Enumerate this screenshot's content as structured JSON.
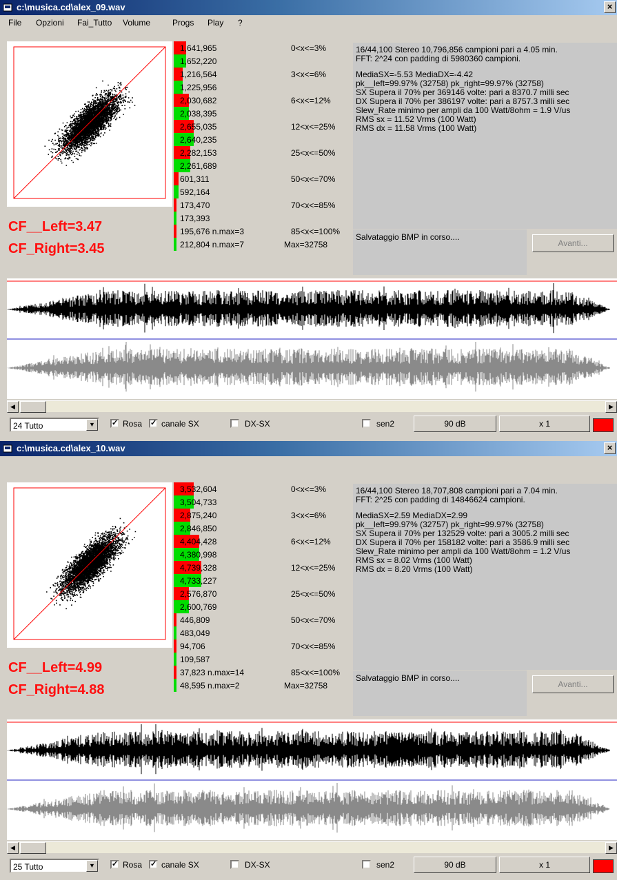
{
  "colors": {
    "red": "#ff0000",
    "green": "#00dd00",
    "title_start": "#0a246a",
    "title_end": "#a6caf0",
    "cf_text": "#ff1010"
  },
  "menu": [
    "File",
    "Opzioni",
    "Fai_Tutto",
    "Volume",
    "Progs",
    "Play",
    "?"
  ],
  "windows": [
    {
      "title": "c:\\musica.cd\\alex_09.wav",
      "close_glyph": "×",
      "cf_left": "CF__Left=3.47",
      "cf_right": "CF_Right=3.45",
      "bars": [
        {
          "value": "1,641,965",
          "range": "0<x<=3%",
          "channel": "left",
          "fill": 0.08
        },
        {
          "value": "1,652,220",
          "range": "",
          "channel": "right",
          "fill": 0.08
        },
        {
          "value": "1,216,564",
          "range": "3<x<=6%",
          "channel": "left",
          "fill": 0.06
        },
        {
          "value": "1,225,956",
          "range": "",
          "channel": "right",
          "fill": 0.06
        },
        {
          "value": "2,030,682",
          "range": "6<x<=12%",
          "channel": "left",
          "fill": 0.1
        },
        {
          "value": "2,038,395",
          "range": "",
          "channel": "right",
          "fill": 0.1
        },
        {
          "value": "2,655,035",
          "range": "12<x<=25%",
          "channel": "left",
          "fill": 0.13
        },
        {
          "value": "2,640,235",
          "range": "",
          "channel": "right",
          "fill": 0.13
        },
        {
          "value": "2,282,153",
          "range": "25<x<=50%",
          "channel": "left",
          "fill": 0.11
        },
        {
          "value": "2,261,689",
          "range": "",
          "channel": "right",
          "fill": 0.11
        },
        {
          "value": "601,311",
          "range": "50<x<=70%",
          "channel": "left",
          "fill": 0.03
        },
        {
          "value": "592,164",
          "range": "",
          "channel": "right",
          "fill": 0.03
        },
        {
          "value": "173,470",
          "range": "70<x<=85%",
          "channel": "left",
          "fill": 0.01
        },
        {
          "value": "173,393",
          "range": "",
          "channel": "right",
          "fill": 0.01
        },
        {
          "value": "195,676 n.max=3",
          "range": "85<x<=100%",
          "channel": "left",
          "fill": 0.01
        },
        {
          "value": "212,804 n.max=7",
          "range": "Max=32758",
          "channel": "right",
          "fill": 0.01
        }
      ],
      "info": [
        "16/44,100 Stereo 10,796,856 campioni pari a 4.05 min.",
        "FFT: 2^24 con padding di 5980360 campioni.",
        "MediaSX=-5.53  MediaDX=-4.42",
        "pk__left=99.97% (32758)  pk_right=99.97% (32758)",
        "SX Supera il 70% per 369146 volte: pari a 8370.7 milli sec",
        "DX Supera il 70% per 386197 volte: pari a 8757.3 milli sec",
        "Slew_Rate minimo per ampli da 100 Watt/8ohm = 1.9 V/us",
        "RMS sx = 11.52 Vrms (100 Watt)",
        "RMS dx = 11.58 Vrms (100 Watt)"
      ],
      "status": "Salvataggio BMP in corso....",
      "avanti": "Avanti...",
      "combo": "24 Tutto",
      "rosa": "Rosa",
      "canale": "canale SX",
      "dxsx": "DX-SX",
      "sen2": "sen2",
      "db_button": "90 dB",
      "x_button": "x 1",
      "check_mark": "✓",
      "left_arrow": "◀",
      "right_arrow": "▶",
      "combo_arrow": "▼"
    },
    {
      "title": "c:\\musica.cd\\alex_10.wav",
      "close_glyph": "×",
      "cf_left": "CF__Left=4.99",
      "cf_right": "CF_Right=4.88",
      "bars": [
        {
          "value": "3,532,604",
          "range": "0<x<=3%",
          "channel": "left",
          "fill": 0.13
        },
        {
          "value": "3,504,733",
          "range": "",
          "channel": "right",
          "fill": 0.13
        },
        {
          "value": "2,875,240",
          "range": "3<x<=6%",
          "channel": "left",
          "fill": 0.11
        },
        {
          "value": "2,846,850",
          "range": "",
          "channel": "right",
          "fill": 0.11
        },
        {
          "value": "4,404,428",
          "range": "6<x<=12%",
          "channel": "left",
          "fill": 0.17
        },
        {
          "value": "4,380,998",
          "range": "",
          "channel": "right",
          "fill": 0.17
        },
        {
          "value": "4,739,328",
          "range": "12<x<=25%",
          "channel": "left",
          "fill": 0.18
        },
        {
          "value": "4,733,227",
          "range": "",
          "channel": "right",
          "fill": 0.18
        },
        {
          "value": "2,576,870",
          "range": "25<x<=50%",
          "channel": "left",
          "fill": 0.1
        },
        {
          "value": "2,600,769",
          "range": "",
          "channel": "right",
          "fill": 0.1
        },
        {
          "value": "446,809",
          "range": "50<x<=70%",
          "channel": "left",
          "fill": 0.02
        },
        {
          "value": "483,049",
          "range": "",
          "channel": "right",
          "fill": 0.02
        },
        {
          "value": "94,706",
          "range": "70<x<=85%",
          "channel": "left",
          "fill": 0.005
        },
        {
          "value": "109,587",
          "range": "",
          "channel": "right",
          "fill": 0.005
        },
        {
          "value": "37,823 n.max=14",
          "range": "85<x<=100%",
          "channel": "left",
          "fill": 0.003
        },
        {
          "value": "48,595 n.max=2",
          "range": "Max=32758",
          "channel": "right",
          "fill": 0.003
        }
      ],
      "info": [
        "16/44,100 Stereo 18,707,808 campioni pari a 7.04 min.",
        "FFT: 2^25 con padding di 14846624 campioni.",
        "MediaSX=2.59  MediaDX=2.99",
        "pk__left=99.97% (32757)  pk_right=99.97% (32758)",
        "SX Supera il 70% per 132529 volte: pari a 3005.2 milli sec",
        "DX Supera il 70% per 158182 volte: pari a 3586.9 milli sec",
        "Slew_Rate minimo per ampli da 100 Watt/8ohm = 1.2 V/us",
        "RMS sx = 8.02 Vrms (100 Watt)",
        "RMS dx = 8.20 Vrms (100 Watt)"
      ],
      "status": "Salvataggio BMP in corso....",
      "avanti": "Avanti...",
      "combo": "25 Tutto",
      "rosa": "Rosa",
      "canale": "canale SX",
      "dxsx": "DX-SX",
      "sen2": "sen2",
      "db_button": "90 dB",
      "x_button": "x 1",
      "check_mark": "✓",
      "left_arrow": "◀",
      "right_arrow": "▶",
      "combo_arrow": "▼"
    }
  ]
}
